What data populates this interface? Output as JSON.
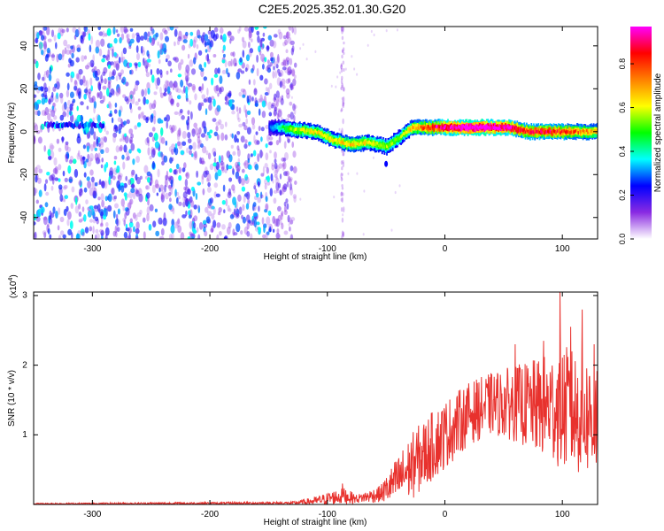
{
  "title": "C2E5.2025.352.01.30.G20",
  "chart_data": [
    {
      "type": "heatmap",
      "name": "spectrogram",
      "xlabel": "Height of straight line (km)",
      "ylabel": "Frequency (Hz)",
      "xlim": [
        -350,
        130
      ],
      "ylim": [
        -50,
        49
      ],
      "xticks": [
        -300,
        -200,
        -100,
        0,
        100
      ],
      "xtick_labels": [
        "-300",
        "-200",
        "-100",
        "0",
        "100"
      ],
      "yticks": [
        -40,
        -20,
        0,
        20,
        40
      ],
      "ytick_labels": [
        "-40",
        "-20",
        "0",
        "20",
        "40"
      ],
      "noise_region_x": [
        -350,
        -135
      ],
      "spike_x": -87,
      "signal_trace": [
        {
          "x": -335,
          "f": 3,
          "a": 0.25
        },
        {
          "x": -320,
          "f": 3,
          "a": 0.35
        },
        {
          "x": -300,
          "f": 2,
          "a": 0.3
        },
        {
          "x": -150,
          "f": 2,
          "a": 0.15
        },
        {
          "x": -140,
          "f": 2,
          "a": 0.3
        },
        {
          "x": -130,
          "f": 1,
          "a": 0.45
        },
        {
          "x": -110,
          "f": 0,
          "a": 0.5
        },
        {
          "x": -95,
          "f": -4,
          "a": 0.5
        },
        {
          "x": -80,
          "f": -6,
          "a": 0.55
        },
        {
          "x": -65,
          "f": -5,
          "a": 0.5
        },
        {
          "x": -50,
          "f": -7,
          "a": 0.45
        },
        {
          "x": -40,
          "f": -3,
          "a": 0.4
        },
        {
          "x": -28,
          "f": 2,
          "a": 0.55
        },
        {
          "x": -10,
          "f": 2,
          "a": 0.75
        },
        {
          "x": 10,
          "f": 2,
          "a": 0.9
        },
        {
          "x": 30,
          "f": 2,
          "a": 0.95
        },
        {
          "x": 55,
          "f": 2,
          "a": 0.85
        },
        {
          "x": 70,
          "f": 0,
          "a": 0.7
        },
        {
          "x": 90,
          "f": 0,
          "a": 0.75
        },
        {
          "x": 110,
          "f": 0,
          "a": 0.65
        },
        {
          "x": 128,
          "f": 0,
          "a": 0.55
        }
      ],
      "colorbar": {
        "label": "Normalized spectral amplitude",
        "range": [
          0,
          0.97
        ],
        "ticks": [
          0,
          0.2,
          0.4,
          0.6,
          0.8
        ],
        "tick_labels": [
          "0.0",
          "0.2",
          "0.4",
          "0.6",
          "0.8"
        ],
        "colors": [
          "#ffffff",
          "#8a2be2",
          "#0000ff",
          "#00ffff",
          "#00ff00",
          "#ffff00",
          "#ff8000",
          "#ff0000",
          "#ff00ff"
        ]
      }
    },
    {
      "type": "line",
      "name": "snr",
      "xlabel": "Height of straight line (km)",
      "ylabel": "SNR (10 * v/v)",
      "scale_label": "(x10",
      "scale_exponent": "4",
      "xlim": [
        -350,
        130
      ],
      "ylim": [
        0,
        3.05
      ],
      "xticks": [
        -300,
        -200,
        -100,
        0,
        100
      ],
      "xtick_labels": [
        "-300",
        "-200",
        "-100",
        "0",
        "100"
      ],
      "yticks": [
        1,
        2,
        3
      ],
      "ytick_labels": [
        "1",
        "2",
        "3"
      ],
      "color": "#e8312d",
      "envelope": [
        {
          "x": -350,
          "mean": 0.01,
          "spread": 0.01
        },
        {
          "x": -130,
          "mean": 0.02,
          "spread": 0.02
        },
        {
          "x": -110,
          "mean": 0.05,
          "spread": 0.06
        },
        {
          "x": -95,
          "mean": 0.1,
          "spread": 0.1
        },
        {
          "x": -85,
          "mean": 0.12,
          "spread": 0.12
        },
        {
          "x": -75,
          "mean": 0.08,
          "spread": 0.06
        },
        {
          "x": -55,
          "mean": 0.15,
          "spread": 0.12
        },
        {
          "x": -40,
          "mean": 0.35,
          "spread": 0.35
        },
        {
          "x": -25,
          "mean": 0.6,
          "spread": 0.5
        },
        {
          "x": -10,
          "mean": 0.85,
          "spread": 0.5
        },
        {
          "x": 0,
          "mean": 1.0,
          "spread": 0.5
        },
        {
          "x": 20,
          "mean": 1.3,
          "spread": 0.45
        },
        {
          "x": 40,
          "mean": 1.45,
          "spread": 0.45
        },
        {
          "x": 60,
          "mean": 1.45,
          "spread": 0.55
        },
        {
          "x": 80,
          "mean": 1.4,
          "spread": 0.7
        },
        {
          "x": 100,
          "mean": 1.4,
          "spread": 0.9
        },
        {
          "x": 115,
          "mean": 1.3,
          "spread": 0.9
        },
        {
          "x": 130,
          "mean": 1.25,
          "spread": 0.85
        }
      ],
      "peaks": [
        {
          "x": 98,
          "y": 3.05
        },
        {
          "x": 117,
          "y": 2.8
        },
        {
          "x": 107,
          "y": 2.55
        },
        {
          "x": 60,
          "y": 2.3
        },
        {
          "x": 84,
          "y": 2.35
        },
        {
          "x": 127,
          "y": 2.3
        },
        {
          "x": -87,
          "y": 0.3
        }
      ]
    }
  ]
}
